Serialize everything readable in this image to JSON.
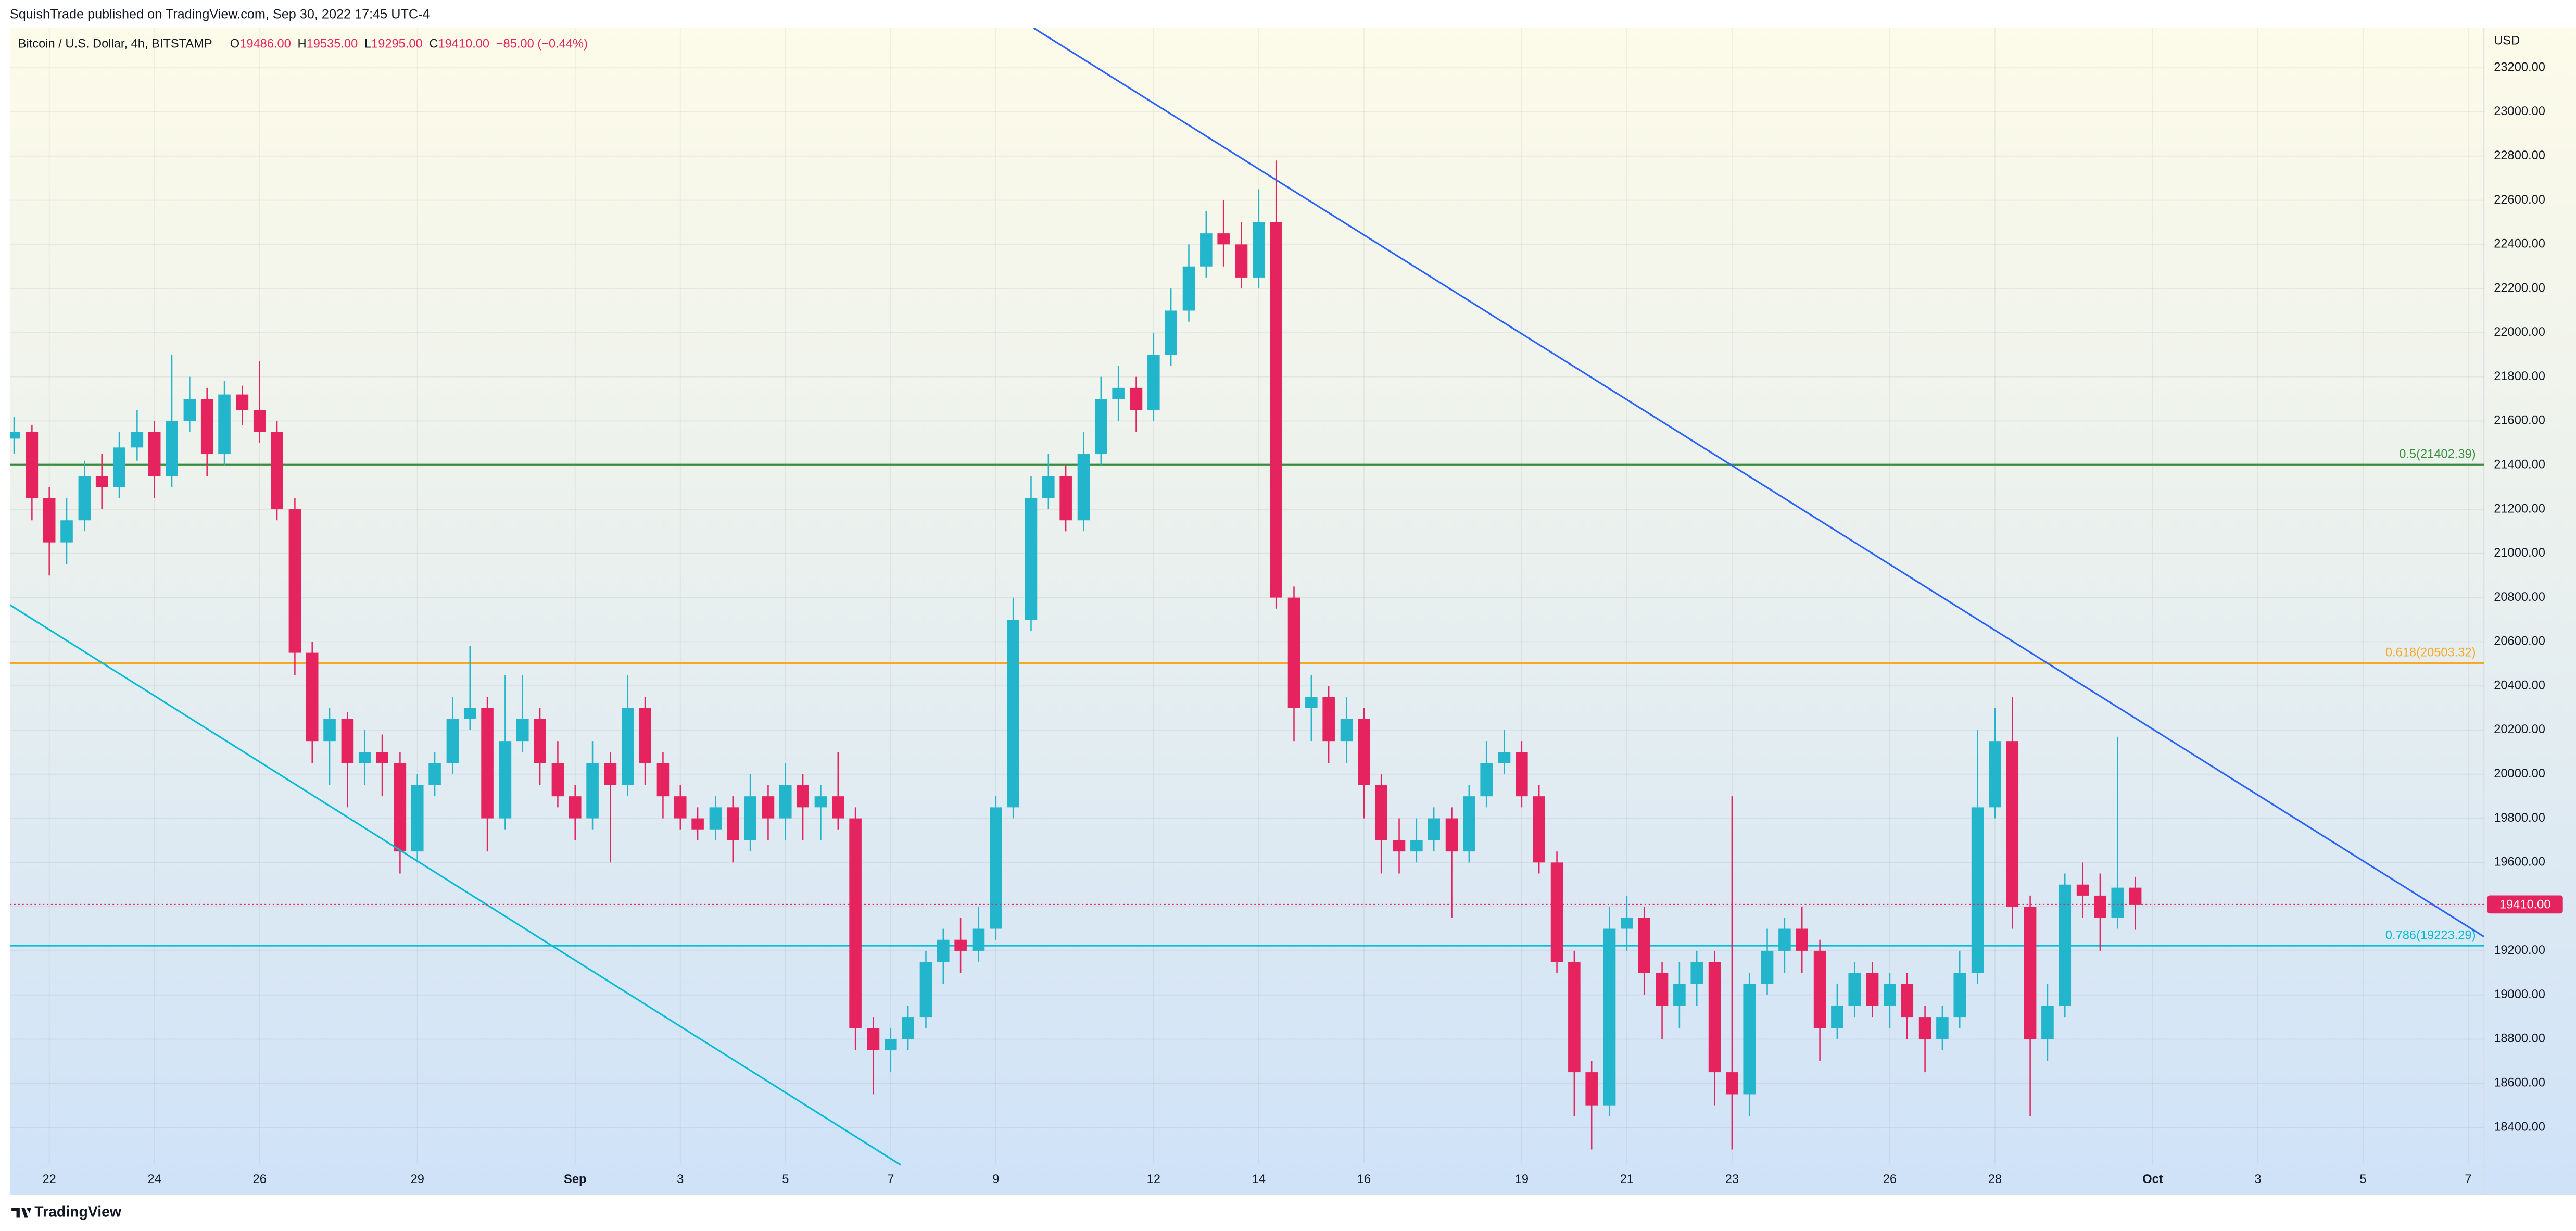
{
  "header": {
    "publisher": "SquishTrade published on TradingView.com, Sep 30, 2022 17:45 UTC-4",
    "footer": "TradingView"
  },
  "chart_data": {
    "type": "candlestick",
    "symbol": "Bitcoin / U.S. Dollar, 4h, BITSTAMP",
    "ohlc_legend": [
      {
        "key": "O",
        "value": "19486.00"
      },
      {
        "key": "H",
        "value": "19535.00"
      },
      {
        "key": "L",
        "value": "19295.00"
      },
      {
        "key": "C",
        "value": "19410.00"
      }
    ],
    "change": "−85.00 (−0.44%)",
    "currency": "USD",
    "up_color": "#22b5cc",
    "down_color": "#e5245f",
    "grid": true,
    "xlim": [
      21.25,
      68.3
    ],
    "ylim": [
      18095,
      23380
    ],
    "xticks": [
      22,
      24,
      26,
      29,
      {
        "value": 32,
        "label": "Sep"
      },
      {
        "value": 34,
        "label": "3"
      },
      {
        "value": 36,
        "label": "5"
      },
      {
        "value": 38,
        "label": "7"
      },
      {
        "value": 40,
        "label": "9"
      },
      {
        "value": 43,
        "label": "12"
      },
      {
        "value": 45,
        "label": "14"
      },
      {
        "value": 47,
        "label": "16"
      },
      {
        "value": 50,
        "label": "19"
      },
      {
        "value": 52,
        "label": "21"
      },
      {
        "value": 54,
        "label": "23"
      },
      {
        "value": 57,
        "label": "26"
      },
      {
        "value": 59,
        "label": "28"
      },
      {
        "value": 62,
        "label": "Oct"
      },
      {
        "value": 64,
        "label": "3"
      },
      {
        "value": 66,
        "label": "5"
      },
      {
        "value": 68,
        "label": "7"
      }
    ],
    "yticks": [
      {
        "value": 18400,
        "label": "18400.00"
      },
      {
        "value": 18600,
        "label": "18600.00"
      },
      {
        "value": 18800,
        "label": "18800.00"
      },
      {
        "value": 19000,
        "label": "19000.00"
      },
      {
        "value": 19200,
        "label": "19200.00"
      },
      {
        "value": 19400,
        "label": "19400.00"
      },
      {
        "value": 19600,
        "label": "19600.00"
      },
      {
        "value": 19800,
        "label": "19800.00"
      },
      {
        "value": 20000,
        "label": "20000.00"
      },
      {
        "value": 20200,
        "label": "20200.00"
      },
      {
        "value": 20400,
        "label": "20400.00"
      },
      {
        "value": 20600,
        "label": "20600.00"
      },
      {
        "value": 20800,
        "label": "20800.00"
      },
      {
        "value": 21000,
        "label": "21000.00"
      },
      {
        "value": 21200,
        "label": "21200.00"
      },
      {
        "value": 21400,
        "label": "21400.00"
      },
      {
        "value": 21600,
        "label": "21600.00"
      },
      {
        "value": 21800,
        "label": "21800.00"
      },
      {
        "value": 22000,
        "label": "22000.00"
      },
      {
        "value": 22200,
        "label": "22200.00"
      },
      {
        "value": 22400,
        "label": "22400.00"
      },
      {
        "value": 22600,
        "label": "22600.00"
      },
      {
        "value": 22800,
        "label": "22800.00"
      },
      {
        "value": 23000,
        "label": "23000.00"
      },
      {
        "value": 23200,
        "label": "23200.00"
      }
    ],
    "levels": [
      {
        "value": 21402.39,
        "label": "0.5(21402.39)",
        "color": "#388e3c"
      },
      {
        "value": 20503.32,
        "label": "0.618(20503.32)",
        "color": "#f9a825"
      },
      {
        "value": 19223.29,
        "label": "0.786(19223.29)",
        "color": "#00bcd4"
      }
    ],
    "last_price": {
      "value": 19410,
      "label": "19410.00",
      "color": "#e5245f"
    },
    "trend_lines": [
      {
        "color": "#2962ff",
        "x": [
          40.72,
          68.3
        ],
        "y": [
          23380,
          19264
        ]
      },
      {
        "color": "#00bcd4",
        "x": [
          21.25,
          38.19
        ],
        "y": [
          20767,
          18230
        ]
      }
    ],
    "x": [
      21.33,
      21.67,
      22,
      22.33,
      22.67,
      23,
      23.33,
      23.67,
      24,
      24.33,
      24.67,
      25,
      25.33,
      25.67,
      26,
      26.33,
      26.67,
      27,
      27.33,
      27.67,
      28,
      28.33,
      28.67,
      29,
      29.33,
      29.67,
      30,
      30.33,
      30.67,
      31,
      31.33,
      31.67,
      32,
      32.33,
      32.67,
      33,
      33.33,
      33.67,
      34,
      34.33,
      34.67,
      35,
      35.33,
      35.67,
      36,
      36.33,
      36.67,
      37,
      37.33,
      37.67,
      38,
      38.33,
      38.67,
      39,
      39.33,
      39.67,
      40,
      40.33,
      40.67,
      41,
      41.33,
      41.67,
      42,
      42.33,
      42.67,
      43,
      43.33,
      43.67,
      44,
      44.33,
      44.67,
      45,
      45.33,
      45.67,
      46,
      46.33,
      46.67,
      47,
      47.33,
      47.67,
      48,
      48.33,
      48.67,
      49,
      49.33,
      49.67,
      50,
      50.33,
      50.67,
      51,
      51.33,
      51.67,
      52,
      52.33,
      52.67,
      53,
      53.33,
      53.67,
      54,
      54.33,
      54.67,
      55,
      55.33,
      55.67,
      56,
      56.33,
      56.67,
      57,
      57.33,
      57.67,
      58,
      58.33,
      58.67,
      59,
      59.33,
      59.67,
      60,
      60.33,
      60.67,
      61,
      61.33,
      61.67
    ],
    "open": [
      21520,
      21550,
      21250,
      21050,
      21150,
      21350,
      21300,
      21480,
      21550,
      21350,
      21600,
      21700,
      21450,
      21720,
      21650,
      21550,
      21200,
      20550,
      20150,
      20250,
      20050,
      20100,
      20050,
      19650,
      19950,
      20050,
      20250,
      20300,
      19800,
      20150,
      20250,
      20050,
      19900,
      19800,
      20050,
      19950,
      20300,
      20050,
      19900,
      19800,
      19750,
      19850,
      19700,
      19900,
      19800,
      19950,
      19850,
      19900,
      19800,
      18850,
      18750,
      18800,
      18900,
      19150,
      19250,
      19200,
      19300,
      19850,
      20700,
      21250,
      21350,
      21150,
      21450,
      21700,
      21750,
      21650,
      21900,
      22100,
      22300,
      22450,
      22400,
      22250,
      22500,
      20800,
      20300,
      20350,
      20150,
      20250,
      19950,
      19700,
      19650,
      19700,
      19800,
      19650,
      19900,
      20050,
      20100,
      19900,
      19600,
      19150,
      18650,
      18500,
      19300,
      19350,
      19100,
      18950,
      19050,
      19150,
      18650,
      18550,
      19050,
      19200,
      19300,
      19200,
      18850,
      18950,
      19100,
      18950,
      19050,
      18900,
      18800,
      18900,
      19100,
      19850,
      20150,
      19400,
      18800,
      18950,
      19500,
      19450,
      19350,
      19486
    ],
    "high": [
      21620,
      21580,
      21300,
      21250,
      21420,
      21450,
      21550,
      21650,
      21600,
      21900,
      21800,
      21750,
      21780,
      21760,
      21870,
      21600,
      21250,
      20600,
      20300,
      20280,
      20200,
      20180,
      20100,
      20000,
      20100,
      20350,
      20580,
      20350,
      20450,
      20450,
      20300,
      20150,
      19950,
      20150,
      20100,
      20450,
      20350,
      20100,
      19950,
      19850,
      19900,
      19900,
      20000,
      19950,
      20050,
      20000,
      19950,
      20100,
      19850,
      18900,
      18850,
      18950,
      19200,
      19300,
      19350,
      19400,
      19900,
      20800,
      21350,
      21450,
      21400,
      21550,
      21800,
      21850,
      21800,
      22000,
      22200,
      22400,
      22550,
      22600,
      22500,
      22650,
      22780,
      20850,
      20450,
      20400,
      20350,
      20300,
      20000,
      19800,
      19800,
      19850,
      19850,
      19950,
      20150,
      20200,
      20150,
      19950,
      19650,
      19200,
      18700,
      19400,
      19450,
      19400,
      19150,
      19150,
      19200,
      19200,
      19900,
      19100,
      19300,
      19350,
      19400,
      19250,
      19050,
      19150,
      19150,
      19100,
      19100,
      18950,
      18950,
      19200,
      20200,
      20300,
      20350,
      19450,
      19050,
      19550,
      19600,
      19550,
      20170,
      19535
    ],
    "low": [
      21450,
      21150,
      20900,
      20950,
      21100,
      21200,
      21250,
      21420,
      21250,
      21300,
      21550,
      21350,
      21400,
      21580,
      21500,
      21150,
      20450,
      20050,
      19950,
      19850,
      19950,
      19900,
      19550,
      19600,
      19900,
      20000,
      20200,
      19650,
      19750,
      20100,
      19950,
      19850,
      19700,
      19750,
      19600,
      19900,
      19950,
      19800,
      19750,
      19700,
      19700,
      19600,
      19650,
      19700,
      19700,
      19700,
      19700,
      19750,
      18750,
      18550,
      18650,
      18750,
      18850,
      19050,
      19100,
      19150,
      19250,
      19800,
      20650,
      21200,
      21100,
      21100,
      21400,
      21600,
      21550,
      21600,
      21850,
      22050,
      22250,
      22300,
      22200,
      22200,
      20750,
      20150,
      20150,
      20050,
      20050,
      19800,
      19550,
      19550,
      19600,
      19650,
      19350,
      19600,
      19850,
      20000,
      19850,
      19550,
      19100,
      18450,
      18300,
      18450,
      19200,
      19000,
      18800,
      18850,
      18950,
      18500,
      18300,
      18450,
      19000,
      19100,
      19100,
      18700,
      18800,
      18900,
      18900,
      18850,
      18800,
      18650,
      18750,
      18850,
      19050,
      19800,
      19300,
      18450,
      18700,
      18900,
      19350,
      19200,
      19300,
      19295
    ],
    "close": [
      21550,
      21250,
      21050,
      21150,
      21350,
      21300,
      21480,
      21550,
      21350,
      21600,
      21700,
      21450,
      21720,
      21650,
      21550,
      21200,
      20550,
      20150,
      20250,
      20050,
      20100,
      20050,
      19650,
      19950,
      20050,
      20250,
      20300,
      19800,
      20150,
      20250,
      20050,
      19900,
      19800,
      20050,
      19950,
      20300,
      20050,
      19900,
      19800,
      19750,
      19850,
      19700,
      19900,
      19800,
      19950,
      19850,
      19900,
      19800,
      18850,
      18750,
      18800,
      18900,
      19150,
      19250,
      19200,
      19300,
      19850,
      20700,
      21250,
      21350,
      21150,
      21450,
      21700,
      21750,
      21650,
      21900,
      22100,
      22300,
      22450,
      22400,
      22250,
      22500,
      20800,
      20300,
      20350,
      20150,
      20250,
      19950,
      19700,
      19650,
      19700,
      19800,
      19650,
      19900,
      20050,
      20100,
      19900,
      19600,
      19150,
      18650,
      18500,
      19300,
      19350,
      19100,
      18950,
      19050,
      19150,
      18650,
      18550,
      19050,
      19200,
      19300,
      19200,
      18850,
      18950,
      19100,
      18950,
      19050,
      18900,
      18800,
      18900,
      19100,
      19850,
      20150,
      19400,
      18800,
      18950,
      19500,
      19450,
      19350,
      19486,
      19410
    ]
  }
}
